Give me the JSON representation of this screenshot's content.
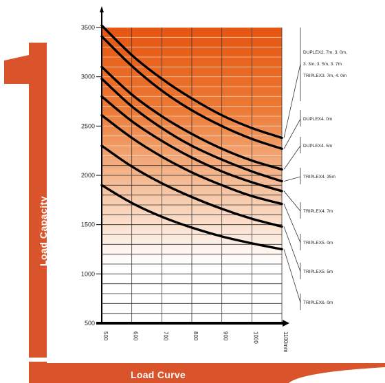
{
  "frame": {
    "side_title": "Load Capacity",
    "bottom_title": "Load Curve",
    "accent_color": "#d9542a"
  },
  "chart_data": {
    "type": "line",
    "title": "",
    "xlabel": "",
    "ylabel": "",
    "x_unit": "mm",
    "x_ticks": [
      "500",
      "600",
      "700",
      "800",
      "900",
      "1000",
      "1100mm"
    ],
    "y_ticks": [
      "500",
      "1000",
      "1500",
      "2000",
      "2500",
      "3000",
      "3500"
    ],
    "xlim": [
      500,
      1100
    ],
    "ylim": [
      500,
      3500
    ],
    "gradient_colors": [
      "#e55510",
      "#ffffff"
    ],
    "series": [
      {
        "x": [
          500,
          600,
          700,
          800,
          900,
          1000,
          1100
        ],
        "y": [
          3520,
          3220,
          2980,
          2780,
          2610,
          2480,
          2380
        ]
      },
      {
        "x": [
          500,
          600,
          700,
          800,
          900,
          1000,
          1100
        ],
        "y": [
          3410,
          3110,
          2860,
          2660,
          2500,
          2370,
          2270
        ]
      },
      {
        "x": [
          500,
          600,
          700,
          800,
          900,
          1000,
          1100
        ],
        "y": [
          3100,
          2820,
          2600,
          2420,
          2270,
          2150,
          2060
        ]
      },
      {
        "x": [
          500,
          600,
          700,
          800,
          900,
          1000,
          1100
        ],
        "y": [
          2980,
          2700,
          2480,
          2300,
          2160,
          2040,
          1940
        ]
      },
      {
        "x": [
          500,
          600,
          700,
          800,
          900,
          1000,
          1100
        ],
        "y": [
          2800,
          2550,
          2350,
          2180,
          2040,
          1930,
          1840
        ]
      },
      {
        "x": [
          500,
          600,
          700,
          800,
          900,
          1000,
          1100
        ],
        "y": [
          2610,
          2380,
          2190,
          2030,
          1900,
          1790,
          1710
        ]
      },
      {
        "x": [
          500,
          600,
          700,
          800,
          900,
          1000,
          1100
        ],
        "y": [
          2300,
          2090,
          1920,
          1780,
          1660,
          1560,
          1480
        ]
      },
      {
        "x": [
          500,
          600,
          700,
          800,
          900,
          1000,
          1100
        ],
        "y": [
          1900,
          1720,
          1580,
          1470,
          1380,
          1310,
          1250
        ]
      }
    ],
    "legend_labels": [
      [
        "DUPLEX2. 7m, 3. 0m,",
        "3. 3m, 3. 5m, 3. 7m",
        "TRIPLEX3. 7m, 4. 0m"
      ],
      [
        "DUPLEX4. 0m"
      ],
      [
        "DUPLEX4. 5m"
      ],
      [
        "TRIPLEX4. 35m"
      ],
      [
        "TRIPLEX4. 7m"
      ],
      [
        "TRIPLEX5. 0m"
      ],
      [
        "TRIPLEX5. 5m"
      ],
      [
        "TRIPLEX6. 0m"
      ]
    ]
  }
}
